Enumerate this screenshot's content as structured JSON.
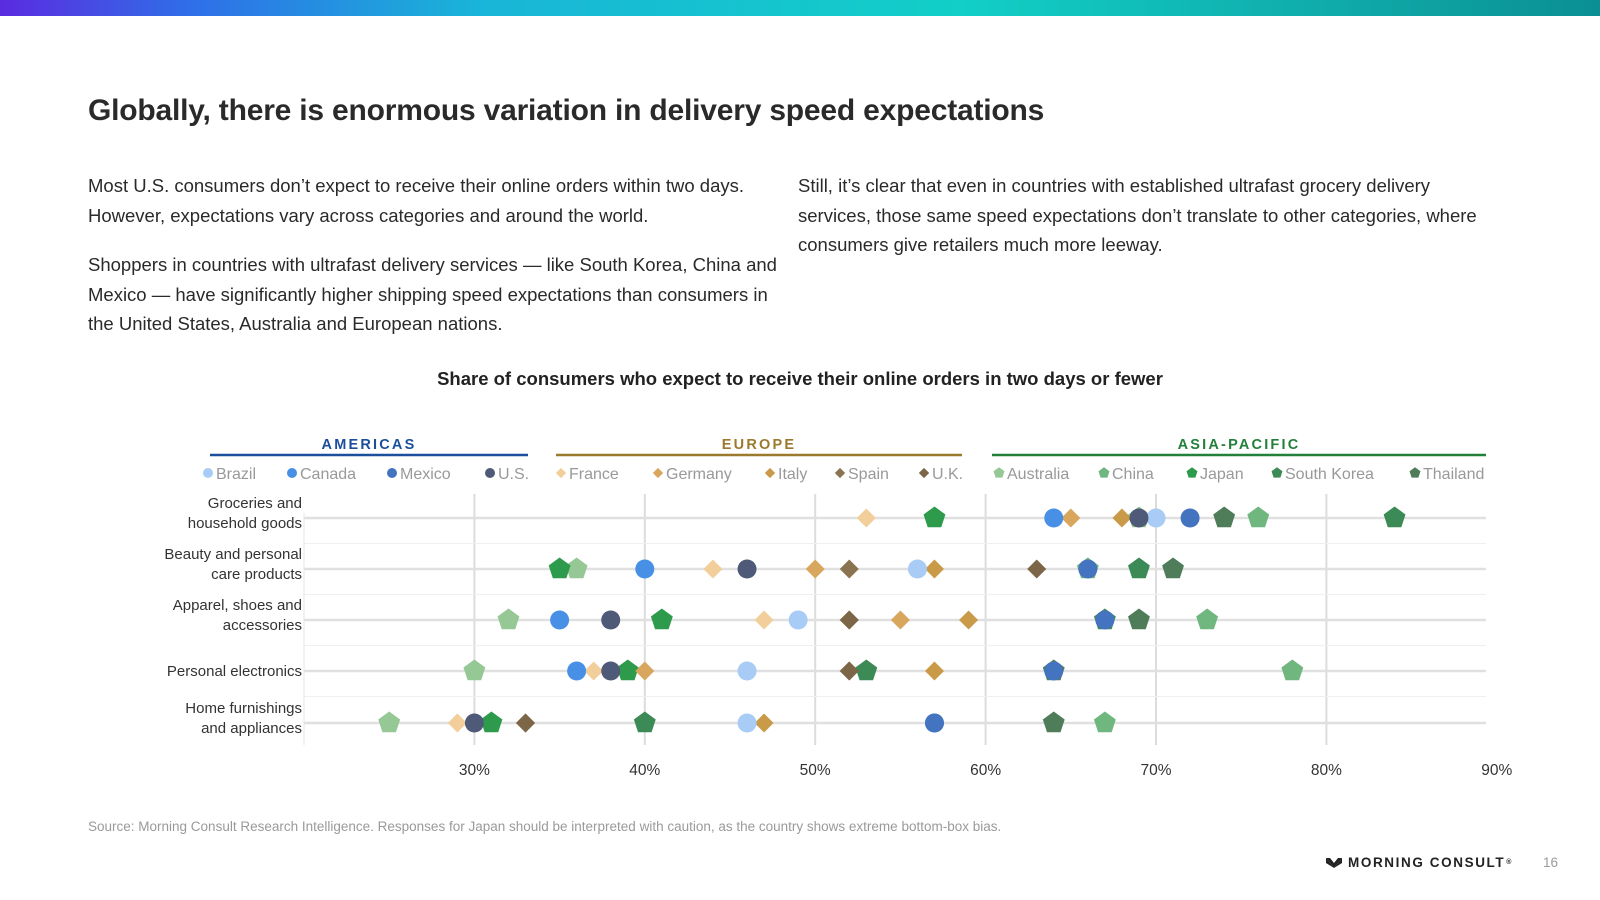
{
  "header": {
    "gradient_colors": [
      "#5b2be0",
      "#19b5d8",
      "#0a8f94"
    ],
    "title": "Globally, there is enormous variation in delivery speed expectations"
  },
  "body": {
    "col1_p1": "Most U.S. consumers don’t expect to receive their online orders within two days. However, expectations vary across categories and around the world.",
    "col1_p2": "Shoppers in countries with ultrafast delivery services — like South Korea, China and Mexico — have significantly higher shipping speed expectations than consumers in the United States, Australia and European nations.",
    "col2_p1": "Still, it’s clear that even in countries with established ultrafast grocery delivery services, those same speed expectations don’t translate to other categories, where consumers give retailers much more leeway."
  },
  "chart_data": {
    "type": "scatter",
    "title": "Share of consumers who expect to receive their online orders in two days or fewer",
    "xlim": [
      20,
      90
    ],
    "x_ticks": [
      30,
      40,
      50,
      60,
      70,
      80,
      90
    ],
    "x_tick_labels": [
      "30%",
      "40%",
      "50%",
      "60%",
      "70%",
      "80%",
      "90%"
    ],
    "categories": [
      [
        "Groceries and",
        "household goods"
      ],
      [
        "Beauty and personal",
        "care products"
      ],
      [
        "Apparel, shoes and",
        "accessories"
      ],
      [
        "Personal electronics"
      ],
      [
        "Home furnishings",
        "and appliances"
      ]
    ],
    "groups": [
      {
        "name": "AMERICAS",
        "color": "#1b4f9c",
        "series": [
          0,
          1,
          2,
          3
        ]
      },
      {
        "name": "EUROPE",
        "color": "#9b7a2e",
        "series": [
          4,
          5,
          6,
          7,
          8
        ]
      },
      {
        "name": "ASIA-PACIFIC",
        "color": "#23803a",
        "series": [
          9,
          10,
          11,
          12,
          13
        ]
      }
    ],
    "series": [
      {
        "name": "Brazil",
        "region": "AMERICAS",
        "shape": "circle",
        "color": "#a8ccf5",
        "values": [
          70,
          56,
          49,
          46,
          46
        ]
      },
      {
        "name": "Canada",
        "region": "AMERICAS",
        "shape": "circle",
        "color": "#4790e6",
        "values": [
          64,
          40,
          35,
          36,
          57
        ]
      },
      {
        "name": "Mexico",
        "region": "AMERICAS",
        "shape": "circle",
        "color": "#4473c0",
        "values": [
          72,
          66,
          67,
          64,
          57
        ]
      },
      {
        "name": "U.S.",
        "region": "AMERICAS",
        "shape": "circle",
        "color": "#4e5a78",
        "values": [
          69,
          46,
          38,
          38,
          30
        ]
      },
      {
        "name": "France",
        "region": "EUROPE",
        "shape": "diamond",
        "color": "#f2cf9a",
        "values": [
          53,
          44,
          47,
          37,
          29
        ]
      },
      {
        "name": "Germany",
        "region": "EUROPE",
        "shape": "diamond",
        "color": "#d8a65c",
        "values": [
          65,
          50,
          55,
          40,
          46
        ]
      },
      {
        "name": "Italy",
        "region": "EUROPE",
        "shape": "diamond",
        "color": "#c99a48",
        "values": [
          68,
          57,
          59,
          57,
          47
        ]
      },
      {
        "name": "Spain",
        "region": "EUROPE",
        "shape": "diamond",
        "color": "#8a7350",
        "values": [
          70,
          52,
          52,
          52,
          33
        ]
      },
      {
        "name": "U.K.",
        "region": "EUROPE",
        "shape": "diamond",
        "color": "#7c6647",
        "values": [
          69,
          63,
          52,
          52,
          33
        ]
      },
      {
        "name": "Australia",
        "region": "ASIA-PACIFIC",
        "shape": "pentagon",
        "color": "#96c896",
        "values": [
          69,
          36,
          32,
          30,
          25
        ]
      },
      {
        "name": "China",
        "region": "ASIA-PACIFIC",
        "shape": "pentagon",
        "color": "#6fb77f",
        "values": [
          76,
          66,
          73,
          78,
          67
        ]
      },
      {
        "name": "Japan",
        "region": "ASIA-PACIFIC",
        "shape": "pentagon",
        "color": "#2e9a4c",
        "values": [
          57,
          35,
          41,
          39,
          31
        ]
      },
      {
        "name": "South Korea",
        "region": "ASIA-PACIFIC",
        "shape": "pentagon",
        "color": "#3c8a55",
        "values": [
          84,
          69,
          67,
          53,
          40
        ]
      },
      {
        "name": "Thailand",
        "region": "ASIA-PACIFIC",
        "shape": "pentagon",
        "color": "#4f7c59",
        "values": [
          74,
          71,
          69,
          64,
          64
        ]
      }
    ]
  },
  "footer": {
    "source": "Source: Morning Consult Research Intelligence. Responses for Japan should be interpreted with caution, as the country shows extreme bottom-box bias.",
    "logo_text": "MORNING CONSULT",
    "logo_mark": "®",
    "page_number": "16"
  }
}
